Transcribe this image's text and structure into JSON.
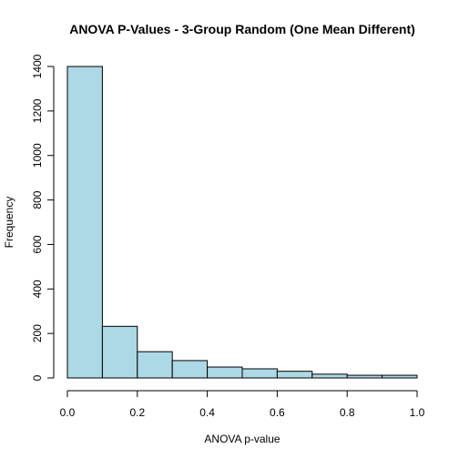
{
  "chart_data": {
    "type": "bar",
    "title": "ANOVA P-Values - 3-Group Random (One Mean Different)",
    "xlabel": "ANOVA p-value",
    "ylabel": "Frequency",
    "bin_edges": [
      0.0,
      0.1,
      0.2,
      0.3,
      0.4,
      0.5,
      0.6,
      0.7,
      0.8,
      0.9,
      1.0
    ],
    "values": [
      1400,
      232,
      118,
      78,
      49,
      41,
      30,
      17,
      12,
      12
    ],
    "xlim": [
      0,
      1
    ],
    "ylim": [
      0,
      1400
    ],
    "xticks": [
      0.0,
      0.2,
      0.4,
      0.6,
      0.8,
      1.0
    ],
    "xtick_labels": [
      "0.0",
      "0.2",
      "0.4",
      "0.6",
      "0.8",
      "1.0"
    ],
    "yticks": [
      0,
      200,
      400,
      600,
      800,
      1000,
      1200,
      1400
    ],
    "ytick_labels": [
      "0",
      "200",
      "400",
      "600",
      "800",
      "1000",
      "1200",
      "1400"
    ],
    "bar_color": "#add8e6",
    "grid": false,
    "legend": "none"
  }
}
